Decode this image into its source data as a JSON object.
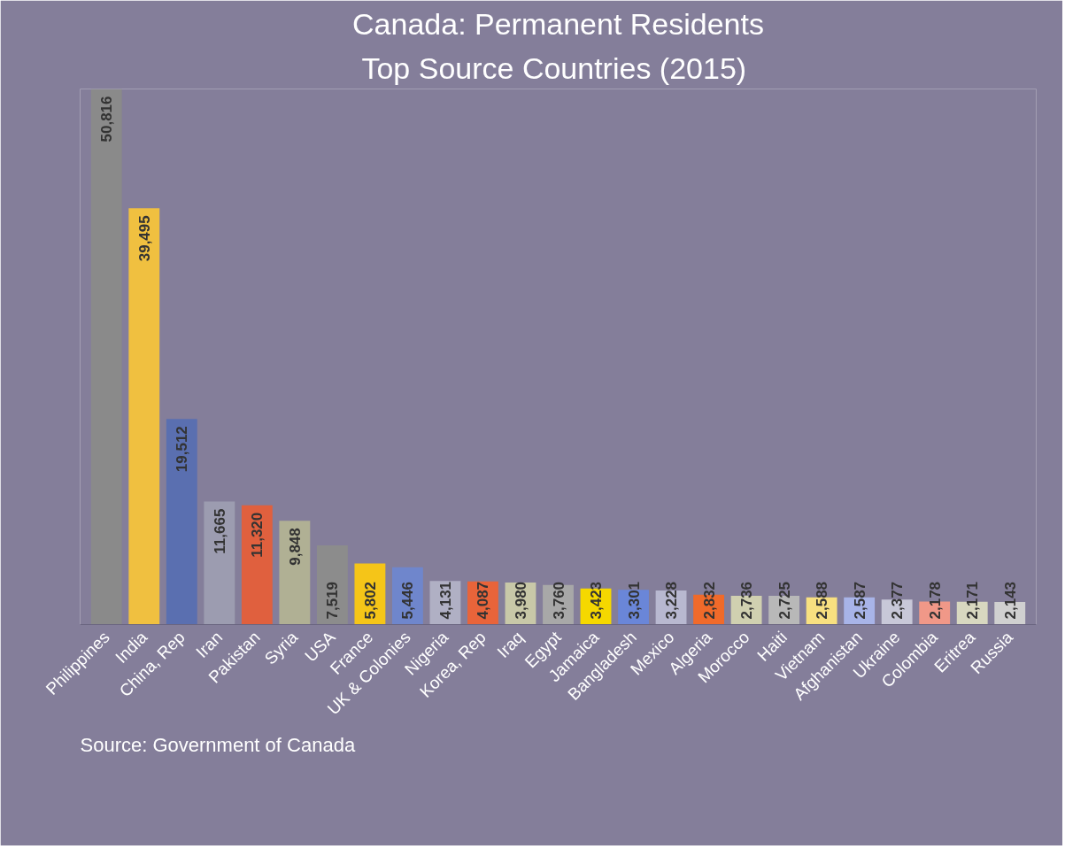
{
  "chart_data": {
    "type": "bar",
    "title": "Canada: Permanent Residents",
    "subtitle": "Top Source Countries  (2015)",
    "categories": [
      "Philippines",
      "India",
      "China, Rep",
      "Iran",
      "Pakistan",
      "Syria",
      "USA",
      "France",
      "UK & Colonies",
      "Nigeria",
      "Korea, Rep",
      "Iraq",
      "Egypt",
      "Jamaica",
      "Bangladesh",
      "Mexico",
      "Algeria",
      "Morocco",
      "Haiti",
      "Vietnam",
      "Afghanistan",
      "Ukraine",
      "Colombia",
      "Eritrea",
      "Russia"
    ],
    "values": [
      50816,
      39495,
      19512,
      11665,
      11320,
      9848,
      7519,
      5802,
      5446,
      4131,
      4087,
      3980,
      3760,
      3423,
      3301,
      3228,
      2832,
      2736,
      2725,
      2588,
      2587,
      2377,
      2178,
      2171,
      2143
    ],
    "colors": [
      "#8a8a8a",
      "#f0c040",
      "#5a6fb0",
      "#9c9cb0",
      "#e0603e",
      "#b0b094",
      "#8c8c8c",
      "#f5c518",
      "#6f86cc",
      "#b0b0c4",
      "#e8643a",
      "#c8c8a8",
      "#a8a8a8",
      "#f5d800",
      "#6a86d8",
      "#b8b8d0",
      "#f06a2a",
      "#d0d0b0",
      "#b8b8b8",
      "#f8e080",
      "#a8b4e8",
      "#c8c8d8",
      "#f09888",
      "#d8d8c0",
      "#d0d0d0"
    ],
    "value_labels": [
      "50,816",
      "39,495",
      "19,512",
      "11,665",
      "11,320",
      "9,848",
      "7,519",
      "5,802",
      "5,446",
      "4,131",
      "4,087",
      "3,980",
      "3,760",
      "3,423",
      "3,301",
      "3,228",
      "2,832",
      "2,736",
      "2,725",
      "2,588",
      "2,587",
      "2,377",
      "2,178",
      "2,171",
      "2,143"
    ],
    "grid": false,
    "annotations": [
      "Source: Government of Canada"
    ]
  }
}
